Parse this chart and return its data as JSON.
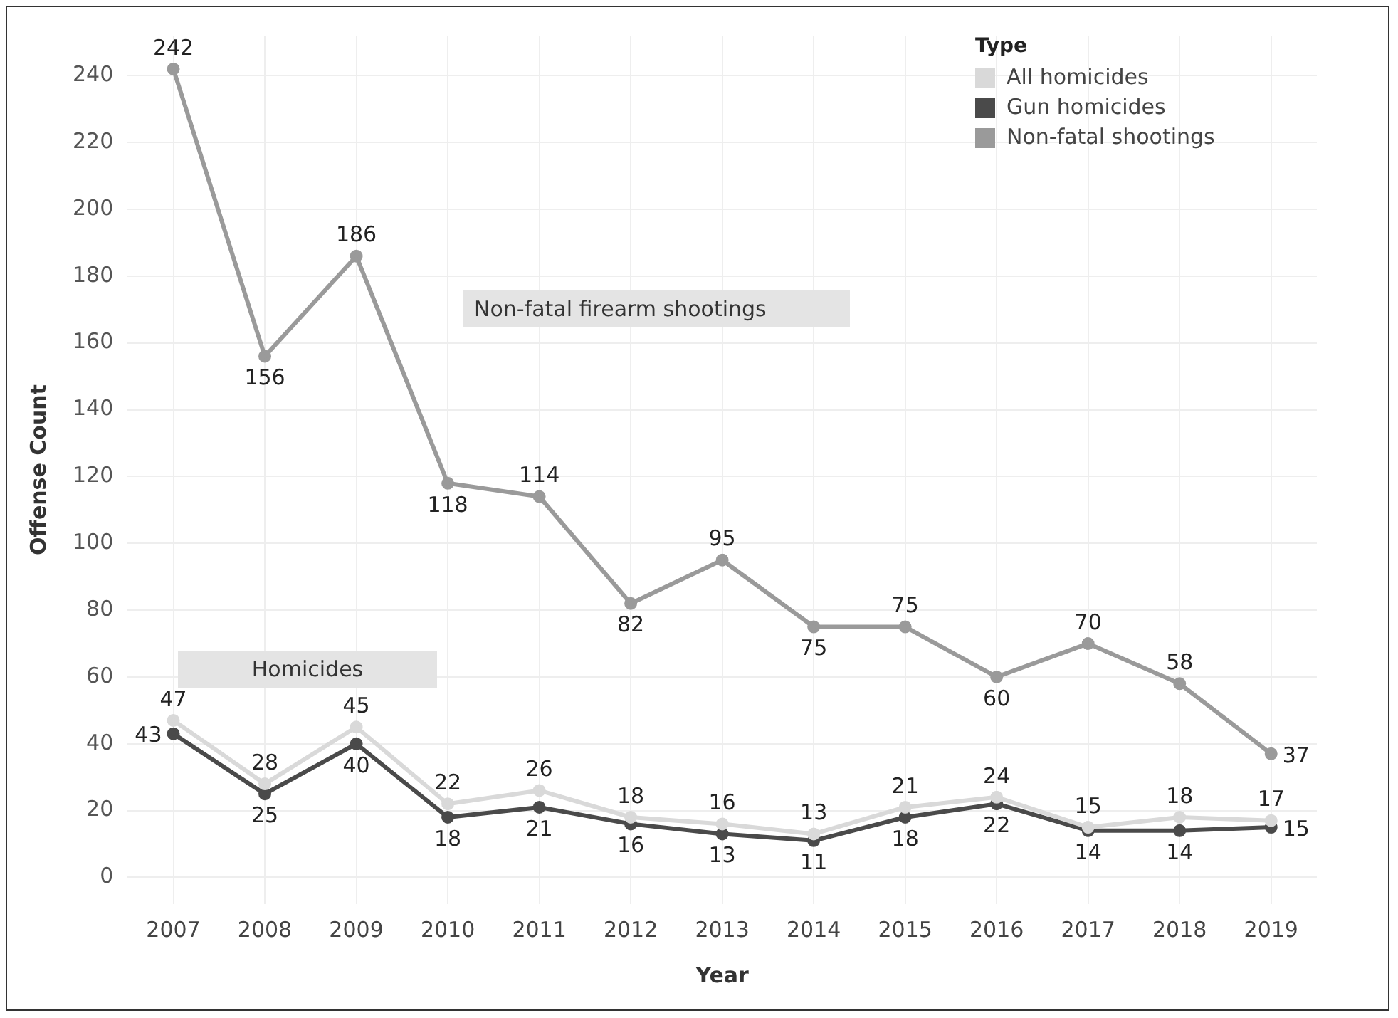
{
  "chart_data": {
    "type": "line",
    "xlabel": "Year",
    "ylabel": "Offense Count",
    "legend_title": "Type",
    "categories": [
      "2007",
      "2008",
      "2009",
      "2010",
      "2011",
      "2012",
      "2013",
      "2014",
      "2015",
      "2016",
      "2017",
      "2018",
      "2019"
    ],
    "series": [
      {
        "name": "All homicides",
        "color": "#d9d9d9",
        "values": [
          47,
          28,
          45,
          22,
          26,
          18,
          16,
          13,
          21,
          24,
          15,
          18,
          17
        ]
      },
      {
        "name": "Gun homicides",
        "color": "#4a4a4a",
        "values": [
          43,
          25,
          40,
          18,
          21,
          16,
          13,
          11,
          18,
          22,
          14,
          14,
          15
        ]
      },
      {
        "name": "Non-fatal shootings",
        "color": "#9a9a9a",
        "values": [
          242,
          156,
          186,
          118,
          114,
          82,
          95,
          75,
          75,
          60,
          70,
          58,
          37
        ]
      }
    ],
    "ylim": [
      -8,
      252
    ],
    "yticks": [
      0,
      20,
      40,
      60,
      80,
      100,
      120,
      140,
      160,
      180,
      200,
      220,
      240
    ],
    "annotations": [
      "Non-fatal firearm shootings",
      "Homicides"
    ],
    "data_labels": true,
    "grid": true,
    "legend": "top right",
    "marker": "circle",
    "line_style": "solid"
  }
}
